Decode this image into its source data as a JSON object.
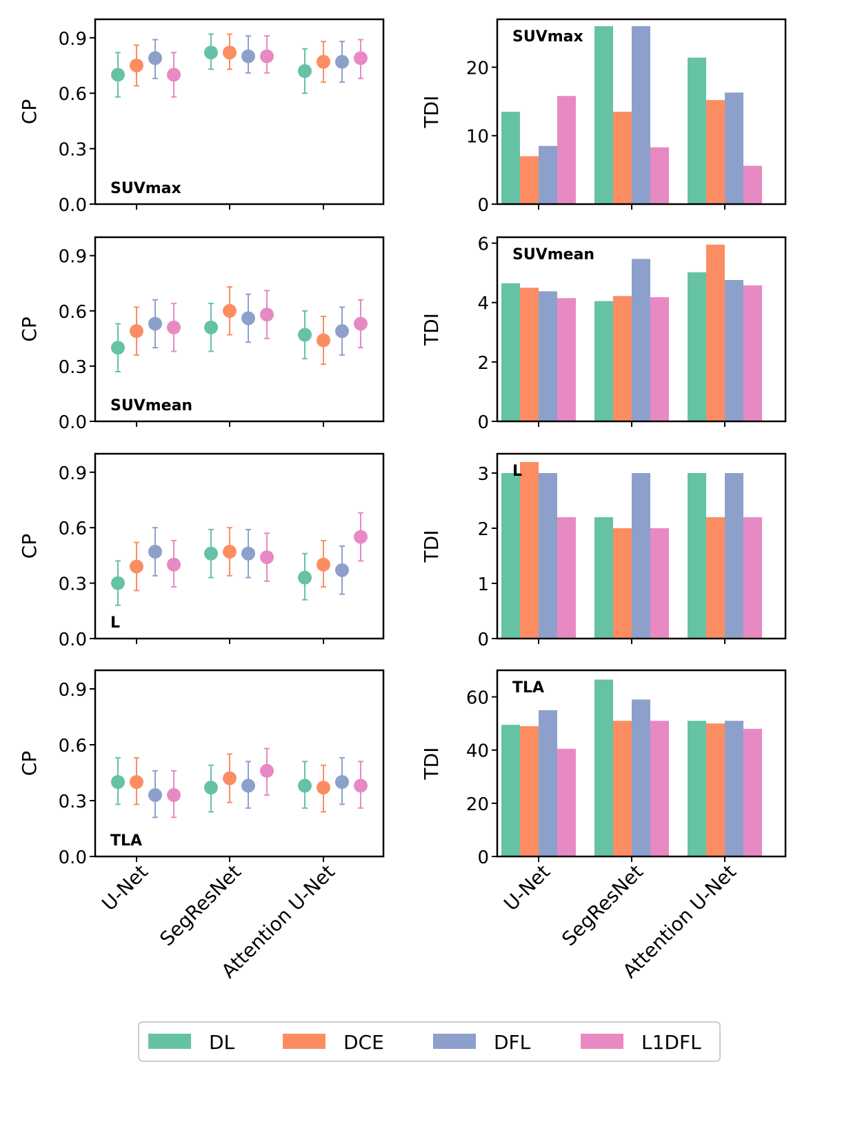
{
  "colors": {
    "DL": "#66c2a5",
    "DCE": "#fc8d62",
    "DFL": "#8da0cb",
    "L1DFL": "#e78ac3"
  },
  "legend": {
    "items": [
      "DL",
      "DCE",
      "DFL",
      "L1DFL"
    ],
    "placement": "bottom-center"
  },
  "chart_data": [
    {
      "type": "scatter",
      "panel": "CP-SUVmax",
      "label": "SUVmax",
      "ylabel": "CP",
      "ylim": [
        0,
        1.0
      ],
      "yticks": [
        0.0,
        0.3,
        0.6,
        0.9
      ],
      "categories": [
        "U-Net",
        "SegResNet",
        "Attention U-Net"
      ],
      "series": [
        {
          "name": "DL",
          "values": [
            0.7,
            0.82,
            0.72
          ],
          "err_low": [
            0.58,
            0.73,
            0.6
          ],
          "err_high": [
            0.82,
            0.92,
            0.84
          ]
        },
        {
          "name": "DCE",
          "values": [
            0.75,
            0.82,
            0.77
          ],
          "err_low": [
            0.64,
            0.73,
            0.66
          ],
          "err_high": [
            0.86,
            0.92,
            0.88
          ]
        },
        {
          "name": "DFL",
          "values": [
            0.79,
            0.8,
            0.77
          ],
          "err_low": [
            0.68,
            0.71,
            0.66
          ],
          "err_high": [
            0.89,
            0.91,
            0.88
          ]
        },
        {
          "name": "L1DFL",
          "values": [
            0.7,
            0.8,
            0.79
          ],
          "err_low": [
            0.58,
            0.71,
            0.68
          ],
          "err_high": [
            0.82,
            0.91,
            0.89
          ]
        }
      ]
    },
    {
      "type": "bar",
      "panel": "TDI-SUVmax",
      "label": "SUVmax",
      "ylabel": "TDI",
      "ylim": [
        0,
        27.0
      ],
      "yticks": [
        0,
        10,
        20
      ],
      "categories": [
        "U-Net",
        "SegResNet",
        "Attention U-Net"
      ],
      "series": [
        {
          "name": "DL",
          "values": [
            13.5,
            26.0,
            21.4
          ]
        },
        {
          "name": "DCE",
          "values": [
            7.0,
            13.5,
            15.2
          ]
        },
        {
          "name": "DFL",
          "values": [
            8.5,
            26.0,
            16.3
          ]
        },
        {
          "name": "L1DFL",
          "values": [
            15.8,
            8.3,
            5.6
          ]
        }
      ]
    },
    {
      "type": "scatter",
      "panel": "CP-SUVmean",
      "label": "SUVmean",
      "ylabel": "CP",
      "ylim": [
        0,
        1.0
      ],
      "yticks": [
        0.0,
        0.3,
        0.6,
        0.9
      ],
      "categories": [
        "U-Net",
        "SegResNet",
        "Attention U-Net"
      ],
      "series": [
        {
          "name": "DL",
          "values": [
            0.4,
            0.51,
            0.47
          ],
          "err_low": [
            0.27,
            0.38,
            0.34
          ],
          "err_high": [
            0.53,
            0.64,
            0.6
          ]
        },
        {
          "name": "DCE",
          "values": [
            0.49,
            0.6,
            0.44
          ],
          "err_low": [
            0.36,
            0.47,
            0.31
          ],
          "err_high": [
            0.62,
            0.73,
            0.57
          ]
        },
        {
          "name": "DFL",
          "values": [
            0.53,
            0.56,
            0.49
          ],
          "err_low": [
            0.4,
            0.43,
            0.36
          ],
          "err_high": [
            0.66,
            0.69,
            0.62
          ]
        },
        {
          "name": "L1DFL",
          "values": [
            0.51,
            0.58,
            0.53
          ],
          "err_low": [
            0.38,
            0.45,
            0.4
          ],
          "err_high": [
            0.64,
            0.71,
            0.66
          ]
        }
      ]
    },
    {
      "type": "bar",
      "panel": "TDI-SUVmean",
      "label": "SUVmean",
      "ylabel": "TDI",
      "ylim": [
        0,
        6.2
      ],
      "yticks": [
        0,
        2,
        4,
        6
      ],
      "categories": [
        "U-Net",
        "SegResNet",
        "Attention U-Net"
      ],
      "series": [
        {
          "name": "DL",
          "values": [
            4.65,
            4.05,
            5.02
          ]
        },
        {
          "name": "DCE",
          "values": [
            4.5,
            4.22,
            5.95
          ]
        },
        {
          "name": "DFL",
          "values": [
            4.38,
            5.47,
            4.76
          ]
        },
        {
          "name": "L1DFL",
          "values": [
            4.15,
            4.18,
            4.58
          ]
        }
      ]
    },
    {
      "type": "scatter",
      "panel": "CP-L",
      "label": "L",
      "ylabel": "CP",
      "ylim": [
        0,
        1.0
      ],
      "yticks": [
        0.0,
        0.3,
        0.6,
        0.9
      ],
      "categories": [
        "U-Net",
        "SegResNet",
        "Attention U-Net"
      ],
      "series": [
        {
          "name": "DL",
          "values": [
            0.3,
            0.46,
            0.33
          ],
          "err_low": [
            0.18,
            0.33,
            0.21
          ],
          "err_high": [
            0.42,
            0.59,
            0.46
          ]
        },
        {
          "name": "DCE",
          "values": [
            0.39,
            0.47,
            0.4
          ],
          "err_low": [
            0.26,
            0.34,
            0.28
          ],
          "err_high": [
            0.52,
            0.6,
            0.53
          ]
        },
        {
          "name": "DFL",
          "values": [
            0.47,
            0.46,
            0.37
          ],
          "err_low": [
            0.34,
            0.33,
            0.24
          ],
          "err_high": [
            0.6,
            0.59,
            0.5
          ]
        },
        {
          "name": "L1DFL",
          "values": [
            0.4,
            0.44,
            0.55
          ],
          "err_low": [
            0.28,
            0.31,
            0.42
          ],
          "err_high": [
            0.53,
            0.57,
            0.68
          ]
        }
      ]
    },
    {
      "type": "bar",
      "panel": "TDI-L",
      "label": "L",
      "ylabel": "TDI",
      "ylim": [
        0,
        3.35
      ],
      "yticks": [
        0,
        1,
        2,
        3
      ],
      "categories": [
        "U-Net",
        "SegResNet",
        "Attention U-Net"
      ],
      "series": [
        {
          "name": "DL",
          "values": [
            3.0,
            2.2,
            3.0
          ]
        },
        {
          "name": "DCE",
          "values": [
            3.2,
            2.0,
            2.2
          ]
        },
        {
          "name": "DFL",
          "values": [
            3.0,
            3.0,
            3.0
          ]
        },
        {
          "name": "L1DFL",
          "values": [
            2.2,
            2.0,
            2.2
          ]
        }
      ]
    },
    {
      "type": "scatter",
      "panel": "CP-TLA",
      "label": "TLA",
      "ylabel": "CP",
      "ylim": [
        0,
        1.0
      ],
      "yticks": [
        0.0,
        0.3,
        0.6,
        0.9
      ],
      "categories": [
        "U-Net",
        "SegResNet",
        "Attention U-Net"
      ],
      "series": [
        {
          "name": "DL",
          "values": [
            0.4,
            0.37,
            0.38
          ],
          "err_low": [
            0.28,
            0.24,
            0.26
          ],
          "err_high": [
            0.53,
            0.49,
            0.51
          ]
        },
        {
          "name": "DCE",
          "values": [
            0.4,
            0.42,
            0.37
          ],
          "err_low": [
            0.28,
            0.29,
            0.24
          ],
          "err_high": [
            0.53,
            0.55,
            0.49
          ]
        },
        {
          "name": "DFL",
          "values": [
            0.33,
            0.38,
            0.4
          ],
          "err_low": [
            0.21,
            0.26,
            0.28
          ],
          "err_high": [
            0.46,
            0.51,
            0.53
          ]
        },
        {
          "name": "L1DFL",
          "values": [
            0.33,
            0.46,
            0.38
          ],
          "err_low": [
            0.21,
            0.33,
            0.26
          ],
          "err_high": [
            0.46,
            0.58,
            0.51
          ]
        }
      ]
    },
    {
      "type": "bar",
      "panel": "TDI-TLA",
      "label": "TLA",
      "ylabel": "TDI",
      "ylim": [
        0,
        70.0
      ],
      "yticks": [
        0,
        20,
        40,
        60
      ],
      "categories": [
        "U-Net",
        "SegResNet",
        "Attention U-Net"
      ],
      "series": [
        {
          "name": "DL",
          "values": [
            49.5,
            66.5,
            51.0
          ]
        },
        {
          "name": "DCE",
          "values": [
            49.0,
            51.0,
            50.0
          ]
        },
        {
          "name": "DFL",
          "values": [
            55.0,
            59.0,
            51.0
          ]
        },
        {
          "name": "L1DFL",
          "values": [
            40.5,
            51.0,
            48.0
          ]
        }
      ]
    }
  ]
}
